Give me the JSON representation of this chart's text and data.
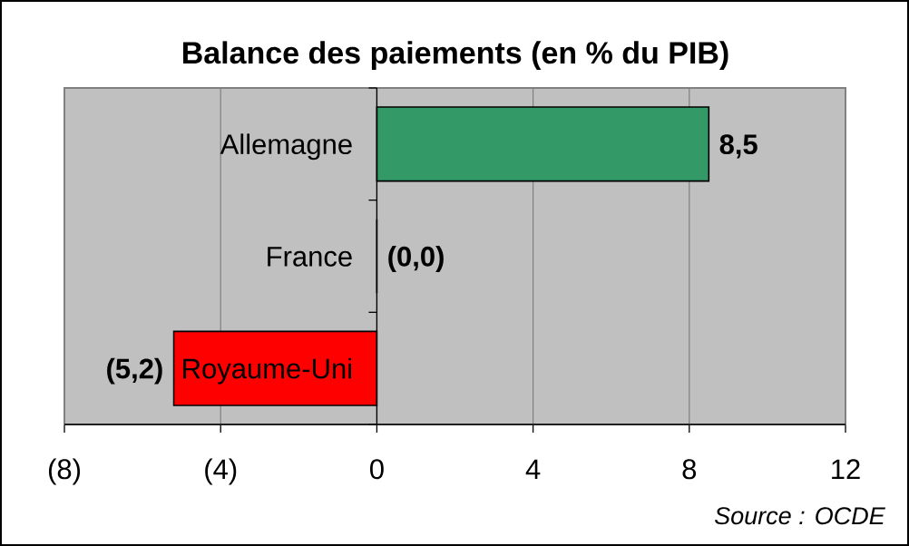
{
  "chart_data": {
    "type": "bar",
    "orientation": "horizontal",
    "title": "Balance des paiements (en % du PIB)",
    "categories": [
      "Allemagne",
      "France",
      "Royaume-Uni"
    ],
    "values": [
      8.5,
      0.0,
      -5.2
    ],
    "colors": [
      "#339966",
      "#000000",
      "#ff0000"
    ],
    "value_labels": [
      "8,5",
      "(0,0)",
      "(5,2)"
    ],
    "xlim": [
      -8,
      12
    ],
    "xticks": [
      {
        "value": -8,
        "label": "(8)"
      },
      {
        "value": -4,
        "label": "(4)"
      },
      0,
      4,
      8,
      12
    ],
    "grid": "x",
    "annotations": [
      "Source : OCDE"
    ]
  }
}
